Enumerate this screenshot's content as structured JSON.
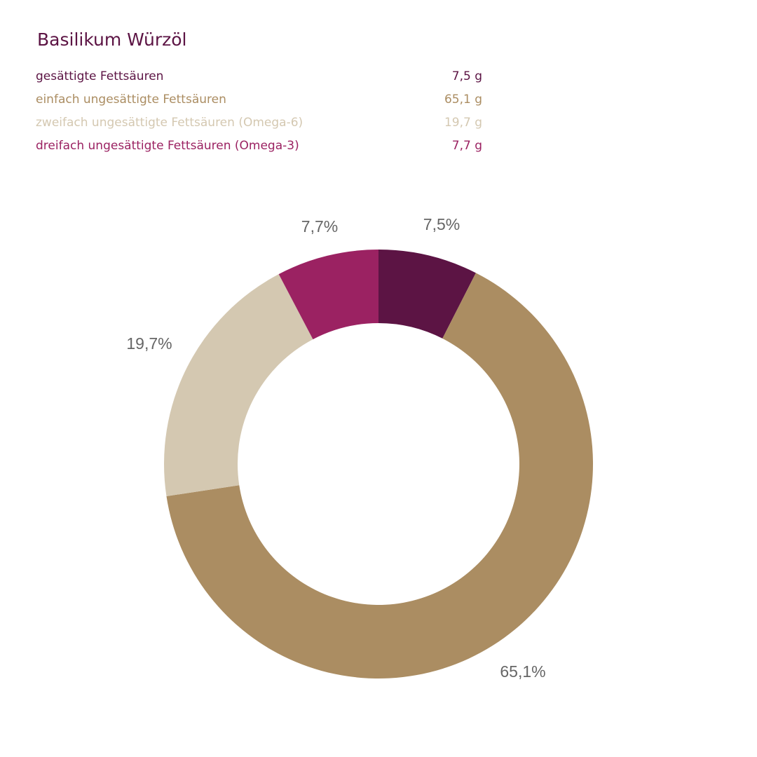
{
  "title": "Basilikum Würzöl",
  "legend": [
    {
      "label": "gesättigte Fettsäuren",
      "value": "7,5 g",
      "color": "#5c1444"
    },
    {
      "label": "einfach ungesättigte Fettsäuren",
      "value": "65,1 g",
      "color": "#ab8d62"
    },
    {
      "label": "zweifach ungesättigte Fettsäuren (Omega-6)",
      "value": "19,7 g",
      "color": "#d4c8b1"
    },
    {
      "label": "dreifach ungesättigte Fettsäuren (Omega-3)",
      "value": "7,7 g",
      "color": "#9b2262"
    }
  ],
  "labels": [
    "7,5%",
    "65,1%",
    "19,7%",
    "7,7%"
  ],
  "chart_data": {
    "type": "pie",
    "subtype": "donut",
    "title": "Basilikum Würzöl",
    "categories": [
      "gesättigte Fettsäuren",
      "einfach ungesättigte Fettsäuren",
      "zweifach ungesättigte Fettsäuren (Omega-6)",
      "dreifach ungesättigte Fettsäuren (Omega-3)"
    ],
    "values": [
      7.5,
      65.1,
      19.7,
      7.7
    ],
    "unit": "g",
    "data_labels": [
      "7,5%",
      "65,1%",
      "19,7%",
      "7,7%"
    ],
    "colors": [
      "#5c1444",
      "#ab8d62",
      "#d4c8b1",
      "#9b2262"
    ],
    "start_angle": "12 o'clock, clockwise",
    "legend_position": "top"
  }
}
